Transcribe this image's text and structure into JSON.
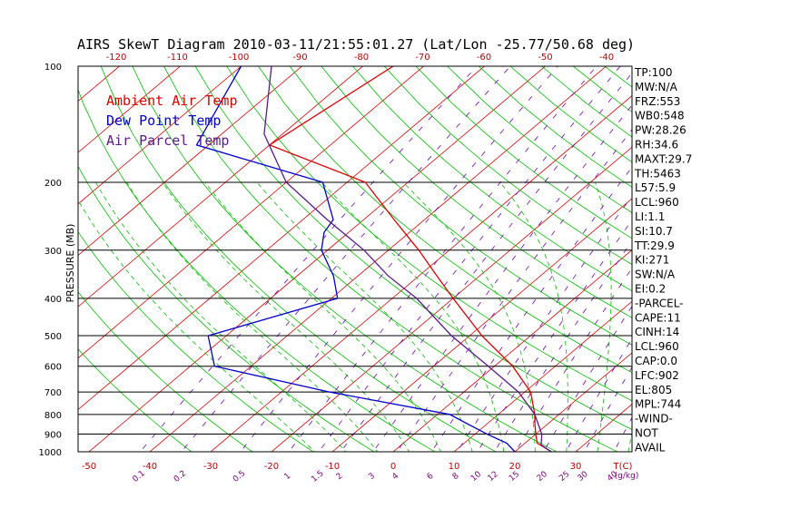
{
  "title": "AIRS SkewT Diagram 2010-03-11/21:55:01.27 (Lat/Lon -25.77/50.68 deg)",
  "chart_data": {
    "type": "line",
    "chart_kind": "skew-t log-p",
    "ylabel": "PRESSURE (MB)",
    "pressure_ticks": [
      "100",
      "200",
      "300",
      "400",
      "500",
      "600",
      "700",
      "800",
      "900",
      "1000"
    ],
    "top_temp_ticks": [
      "-120",
      "-110",
      "-100",
      "-90",
      "-80",
      "-70",
      "-60",
      "-50",
      "-40"
    ],
    "bottom_temp_ticks": [
      "-50",
      "-40",
      "-30",
      "-20",
      "-10",
      "0",
      "10",
      "20",
      "30"
    ],
    "bottom_unit_label": "T(C)",
    "mixing_ratio_labels": [
      "0.1",
      "0.2",
      "0.5",
      "1",
      "1.5",
      "2",
      "3",
      "4",
      "6",
      "8",
      "10",
      "12",
      "15",
      "20",
      "25",
      "30",
      "40"
    ],
    "mixing_ratio_unit_label": "(g/kg)",
    "legend": [
      {
        "label": "Ambient Air Temp",
        "color": "#e00000"
      },
      {
        "label": "Dew Point Temp",
        "color": "#0000d0"
      },
      {
        "label": "Air Parcel Temp",
        "color": "#5a1a8a"
      }
    ],
    "series": [
      {
        "name": "Ambient Air Temp",
        "color": "#e00000",
        "points": [
          [
            100,
            -75
          ],
          [
            160,
            -80
          ],
          [
            200,
            -57
          ],
          [
            250,
            -45
          ],
          [
            300,
            -35
          ],
          [
            350,
            -27
          ],
          [
            400,
            -20
          ],
          [
            500,
            -8
          ],
          [
            600,
            3
          ],
          [
            700,
            11
          ],
          [
            800,
            16
          ],
          [
            850,
            18
          ],
          [
            900,
            20
          ],
          [
            950,
            22
          ],
          [
            1000,
            26
          ]
        ]
      },
      {
        "name": "Dew Point Temp",
        "color": "#0000d0",
        "points": [
          [
            100,
            -100
          ],
          [
            160,
            -92
          ],
          [
            200,
            -64
          ],
          [
            250,
            -55
          ],
          [
            270,
            -54
          ],
          [
            300,
            -51
          ],
          [
            350,
            -44
          ],
          [
            400,
            -39
          ],
          [
            500,
            -53
          ],
          [
            600,
            -46
          ],
          [
            700,
            -22
          ],
          [
            800,
            2
          ],
          [
            900,
            12
          ],
          [
            950,
            17
          ],
          [
            1000,
            20
          ]
        ]
      },
      {
        "name": "Air Parcel Temp",
        "color": "#5a1a8a",
        "points": [
          [
            100,
            -95
          ],
          [
            150,
            -83
          ],
          [
            200,
            -70
          ],
          [
            250,
            -56
          ],
          [
            300,
            -44
          ],
          [
            350,
            -35
          ],
          [
            400,
            -26
          ],
          [
            500,
            -13
          ],
          [
            600,
            -1
          ],
          [
            700,
            9
          ],
          [
            800,
            16
          ],
          [
            900,
            21
          ],
          [
            960,
            23
          ],
          [
            1000,
            26
          ]
        ]
      }
    ],
    "stats": [
      "TP:100",
      "MW:N/A",
      "FRZ:553",
      "WB0:548",
      "PW:28.26",
      "RH:34.6",
      "MAXT:29.7",
      "TH:5463",
      "L57:5.9",
      "LCL:960",
      "LI:1.1",
      "SI:10.7",
      "TT:29.9",
      "KI:271",
      "SW:N/A",
      "EI:0.2",
      "-PARCEL-",
      "CAPE:11",
      "CINH:14",
      "LCL:960",
      "CAP:0.0",
      "LFC:902",
      "EL:805",
      "MPL:744",
      "-WIND-",
      "NOT",
      "AVAIL"
    ],
    "colors": {
      "isotherm": "#e00000",
      "dry_adiabat": "#00c000",
      "moist_adiabat": "#00c000",
      "mixing_ratio": "#7000c0",
      "isobar": "#000000"
    }
  }
}
